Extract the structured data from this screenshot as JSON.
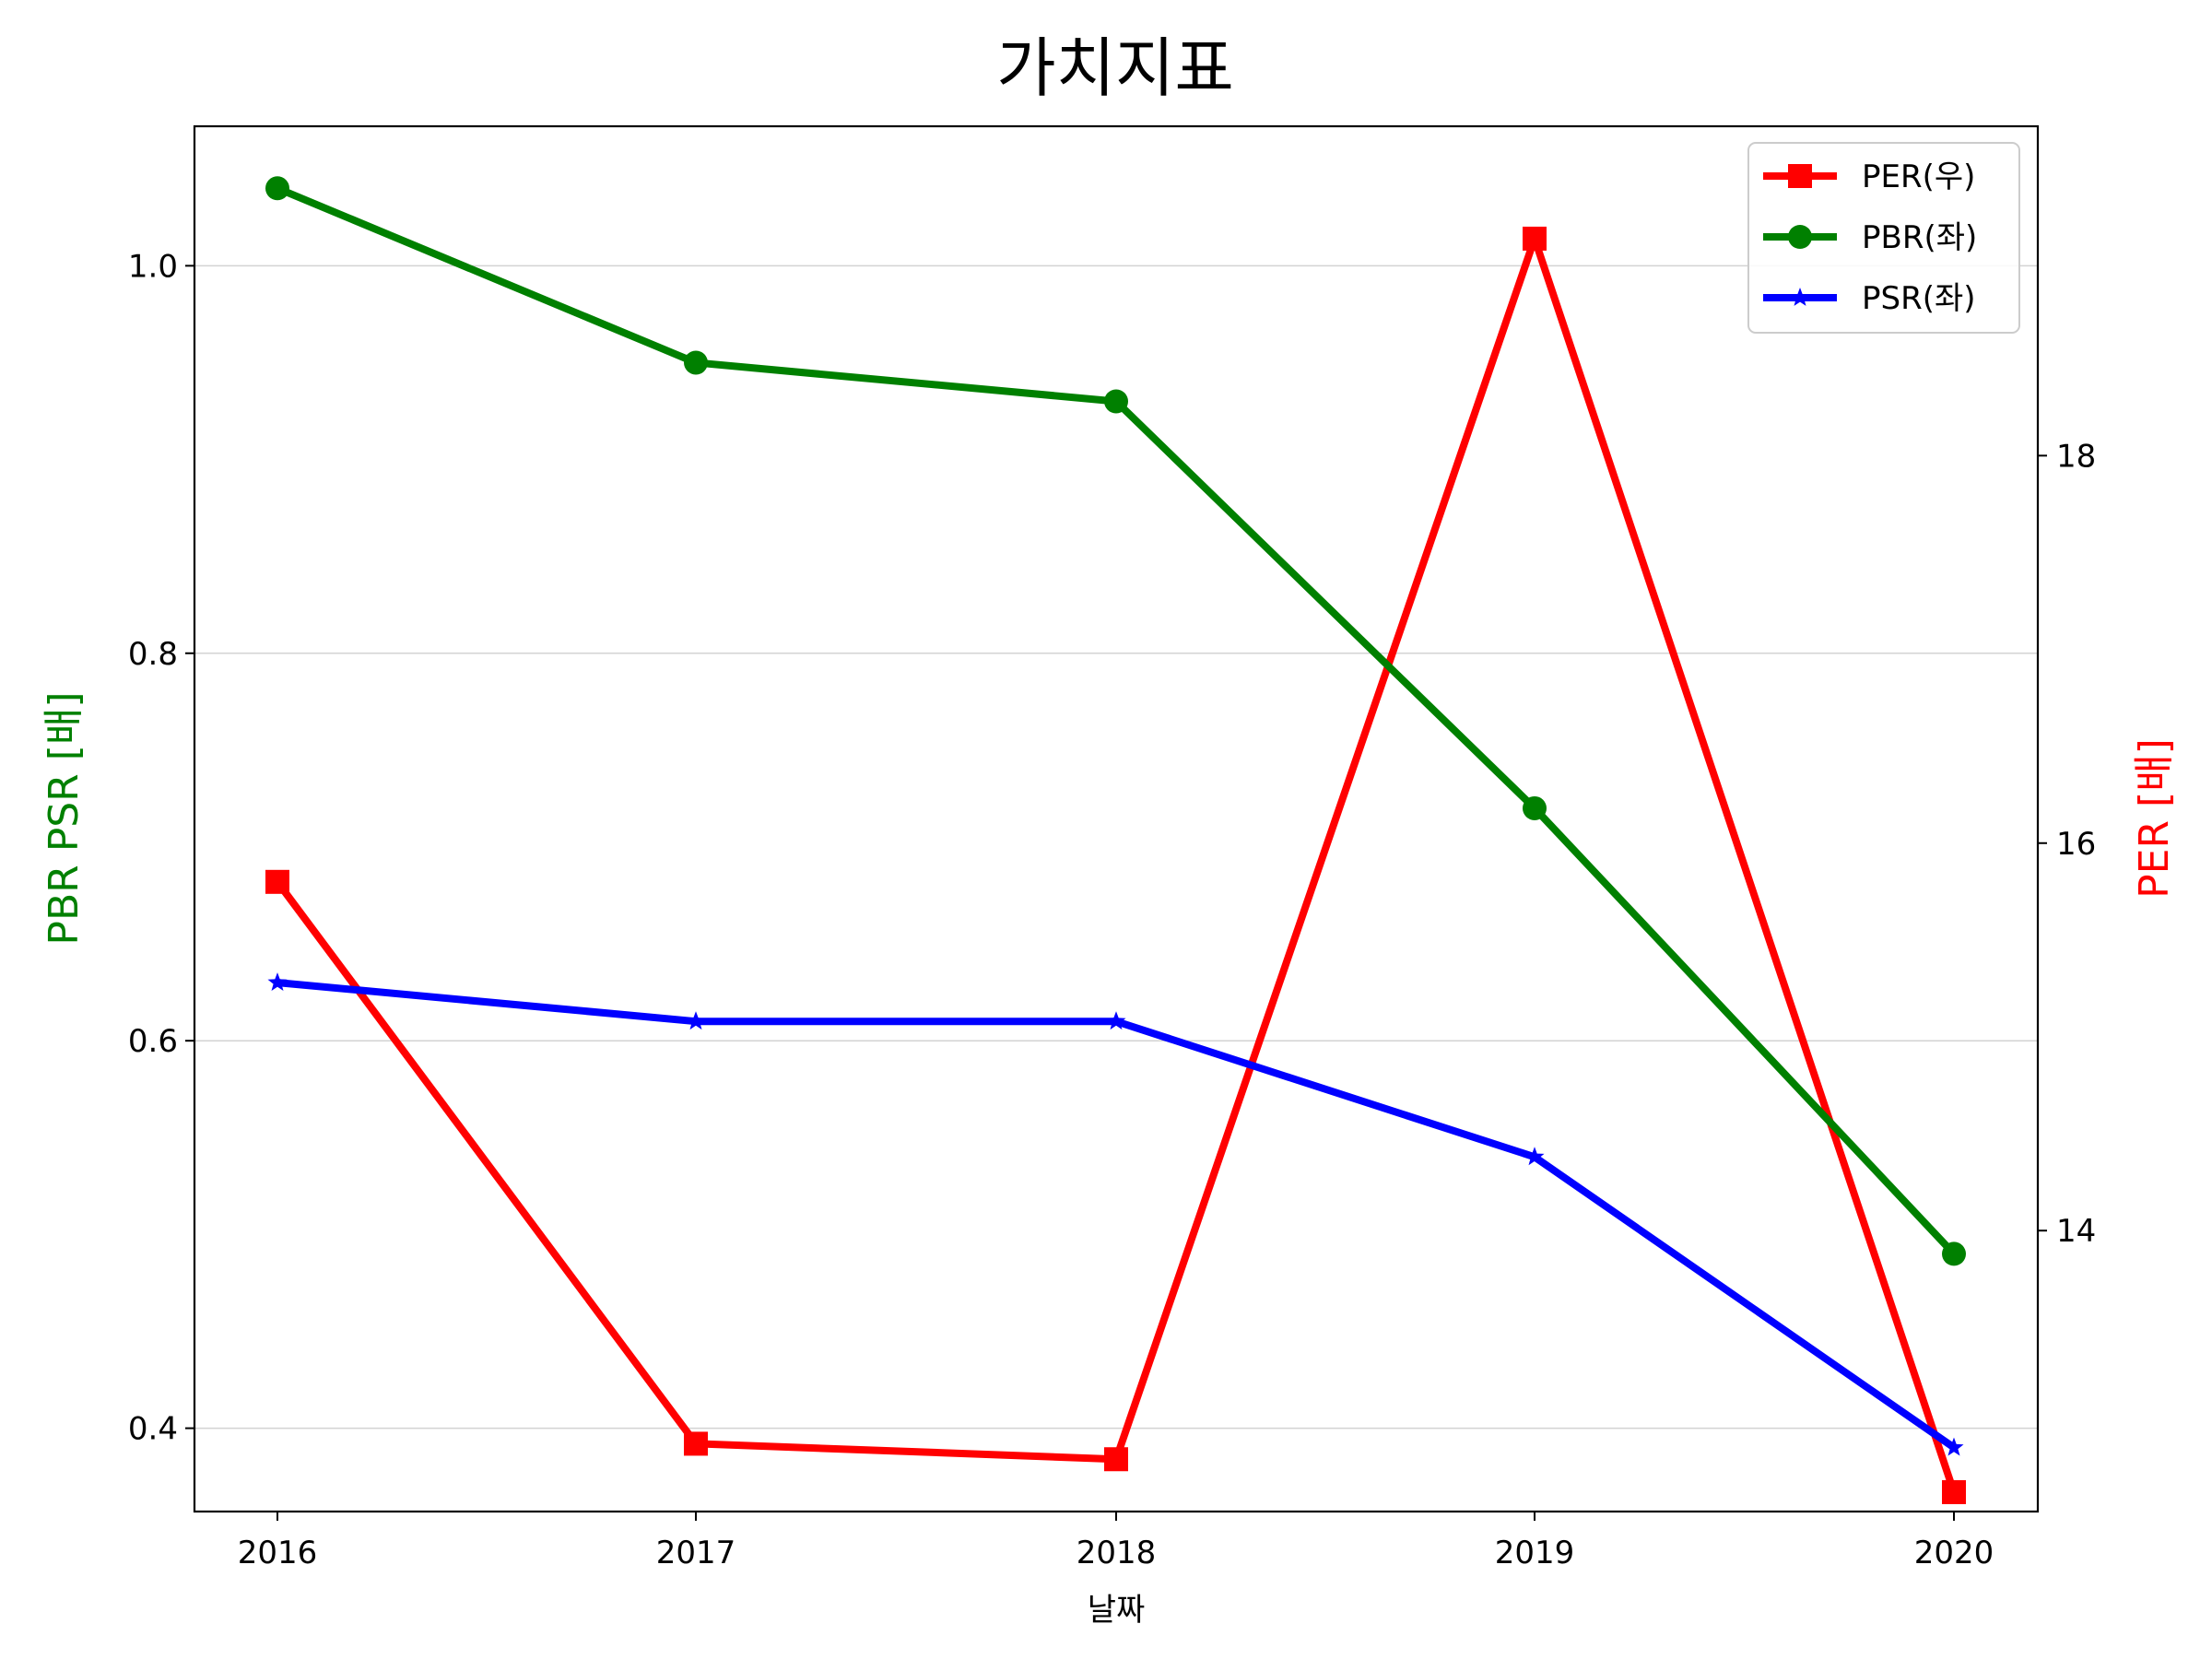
{
  "chart_data": {
    "type": "line",
    "title": "가치지표",
    "xlabel": "날짜",
    "ylabel_left": "PBR PSR [배]",
    "ylabel_right": "PER [배]",
    "categories": [
      "2016",
      "2017",
      "2018",
      "2019",
      "2020"
    ],
    "ylim_left": [
      0.357,
      1.072
    ],
    "yticks_left": [
      "0.4",
      "0.6",
      "0.8",
      "1.0"
    ],
    "ylim_right": [
      12.55,
      19.7
    ],
    "yticks_right": [
      "14",
      "16",
      "18"
    ],
    "grid": "horizontal, left axis",
    "legend_position": "top-right",
    "series": [
      {
        "name": "PER(우)",
        "axis": "right",
        "color": "#ff0000",
        "marker": "square",
        "values": [
          15.8,
          12.9,
          12.82,
          19.12,
          12.65
        ]
      },
      {
        "name": "PBR(좌)",
        "axis": "left",
        "color": "#008000",
        "marker": "circle",
        "values": [
          1.04,
          0.95,
          0.93,
          0.72,
          0.49
        ]
      },
      {
        "name": "PSR(좌)",
        "axis": "left",
        "color": "#0000ff",
        "marker": "star",
        "values": [
          0.63,
          0.61,
          0.61,
          0.54,
          0.39
        ]
      }
    ],
    "ylabel_left_color": "#008000",
    "ylabel_right_color": "#ff0000"
  }
}
